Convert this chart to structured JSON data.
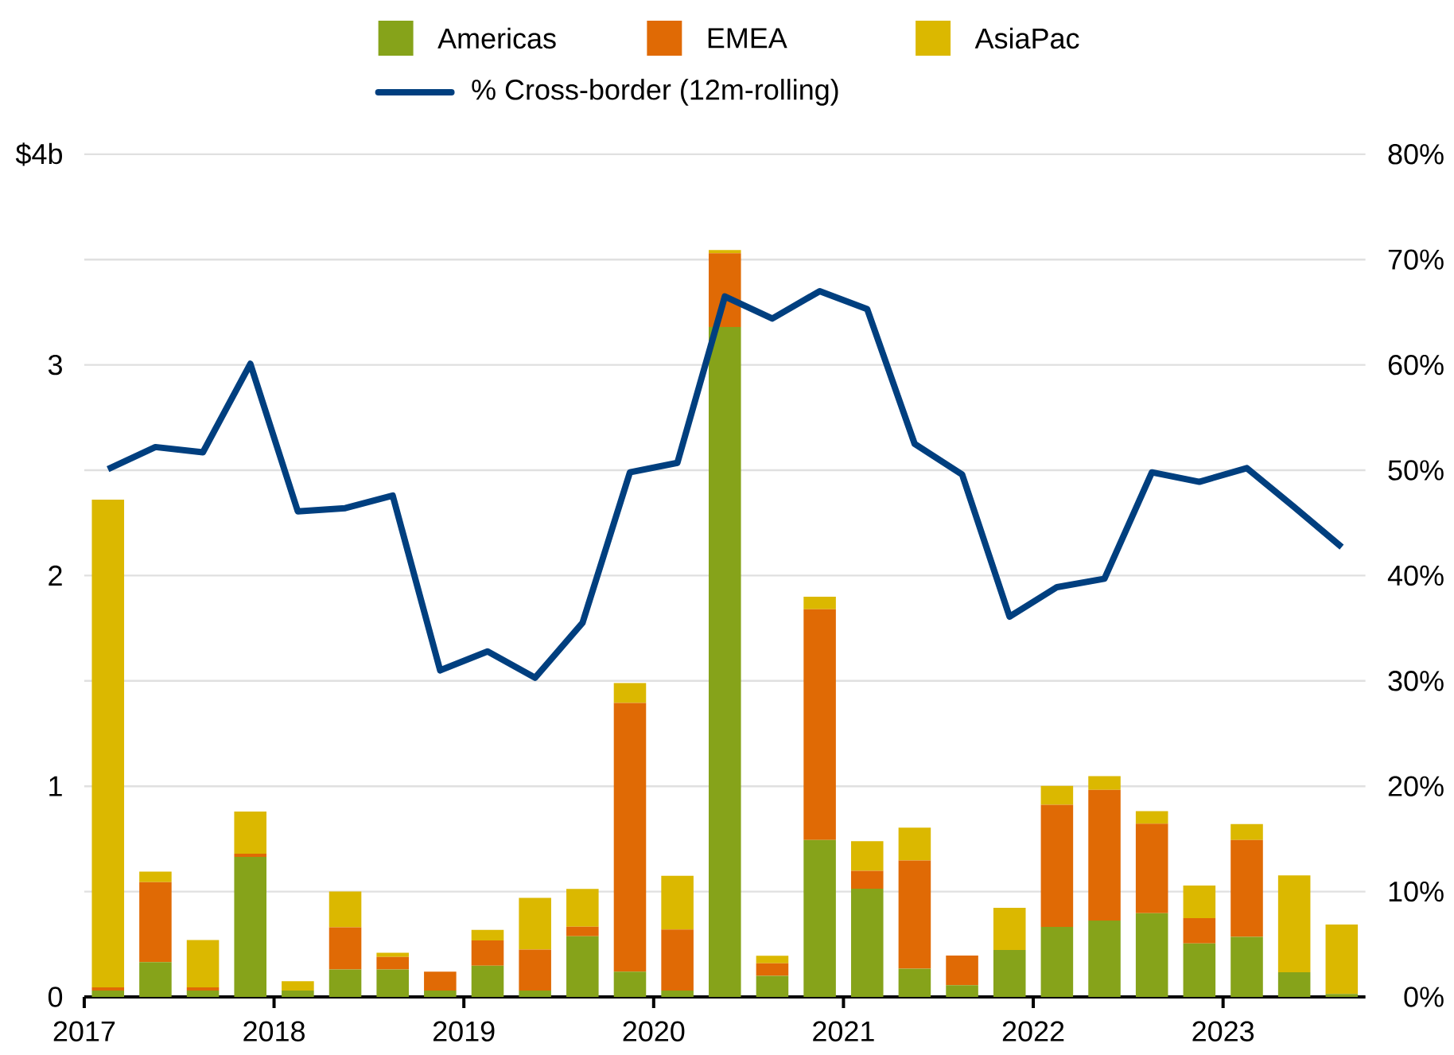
{
  "chart_data": {
    "type": "bar",
    "stacked": true,
    "x": [
      2017.125,
      2017.375,
      2017.625,
      2017.875,
      2018.125,
      2018.375,
      2018.625,
      2018.875,
      2019.125,
      2019.375,
      2019.625,
      2019.875,
      2020.125,
      2020.375,
      2020.625,
      2020.875,
      2021.125,
      2021.375,
      2021.625,
      2021.875,
      2022.125,
      2022.375,
      2022.625,
      2022.875,
      2023.125,
      2023.375,
      2023.625
    ],
    "series": [
      {
        "name": "Americas",
        "color": "#86a31a",
        "values": [
          0.03,
          0.165,
          0.03,
          0.665,
          0.03,
          0.13,
          0.13,
          0.03,
          0.148,
          0.03,
          0.288,
          0.12,
          0.03,
          3.18,
          0.1,
          0.745,
          0.514,
          0.134,
          0.056,
          0.223,
          0.332,
          0.363,
          0.397,
          0.254,
          0.285,
          0.117,
          0.014
        ]
      },
      {
        "name": "EMEA",
        "color": "#e06a05",
        "values": [
          0.015,
          0.38,
          0.015,
          0.015,
          0,
          0.2,
          0.06,
          0.09,
          0.12,
          0.195,
          0.045,
          1.275,
          0.29,
          0.35,
          0.06,
          1.095,
          0.085,
          0.514,
          0.14,
          0,
          0.58,
          0.62,
          0.425,
          0.12,
          0.46,
          0,
          0
        ]
      },
      {
        "name": "AsiaPac",
        "color": "#dbb800",
        "values": [
          2.315,
          0.05,
          0.225,
          0.2,
          0.045,
          0.17,
          0.02,
          0,
          0.05,
          0.245,
          0.18,
          0.095,
          0.255,
          0.015,
          0.035,
          0.06,
          0.14,
          0.155,
          0,
          0.2,
          0.09,
          0.065,
          0.06,
          0.155,
          0.075,
          0.46,
          0.33
        ]
      },
      {
        "name": "% Cross-border (12m-rolling)",
        "type": "line",
        "axis": "y2",
        "color": "#003f7f",
        "line_style": "solid",
        "values": [
          50.1,
          52.2,
          51.7,
          60.1,
          46.1,
          46.4,
          47.6,
          31.0,
          32.8,
          30.3,
          35.5,
          49.8,
          50.7,
          66.5,
          64.4,
          67.0,
          65.3,
          52.5,
          49.6,
          36.1,
          38.9,
          39.7,
          49.8,
          48.9,
          50.2,
          46.5,
          42.7
        ]
      }
    ],
    "xlim": [
      2017,
      2023.75
    ],
    "xticks": [
      2017,
      2018,
      2019,
      2020,
      2021,
      2022,
      2023
    ],
    "ylim": [
      0,
      4
    ],
    "yticks": [
      0,
      1,
      2,
      3,
      {
        "value": 4,
        "label": "$4b"
      }
    ],
    "y2lim": [
      0,
      80
    ],
    "y2ticks": [
      {
        "value": 0,
        "label": "0%"
      },
      {
        "value": 10,
        "label": "10%"
      },
      {
        "value": 20,
        "label": "20%"
      },
      {
        "value": 30,
        "label": "30%"
      },
      {
        "value": 40,
        "label": "40%"
      },
      {
        "value": 50,
        "label": "50%"
      },
      {
        "value": 60,
        "label": "60%"
      },
      {
        "value": 70,
        "label": "70%"
      },
      {
        "value": 80,
        "label": "80%"
      }
    ],
    "grid": "y",
    "legend": "top"
  }
}
